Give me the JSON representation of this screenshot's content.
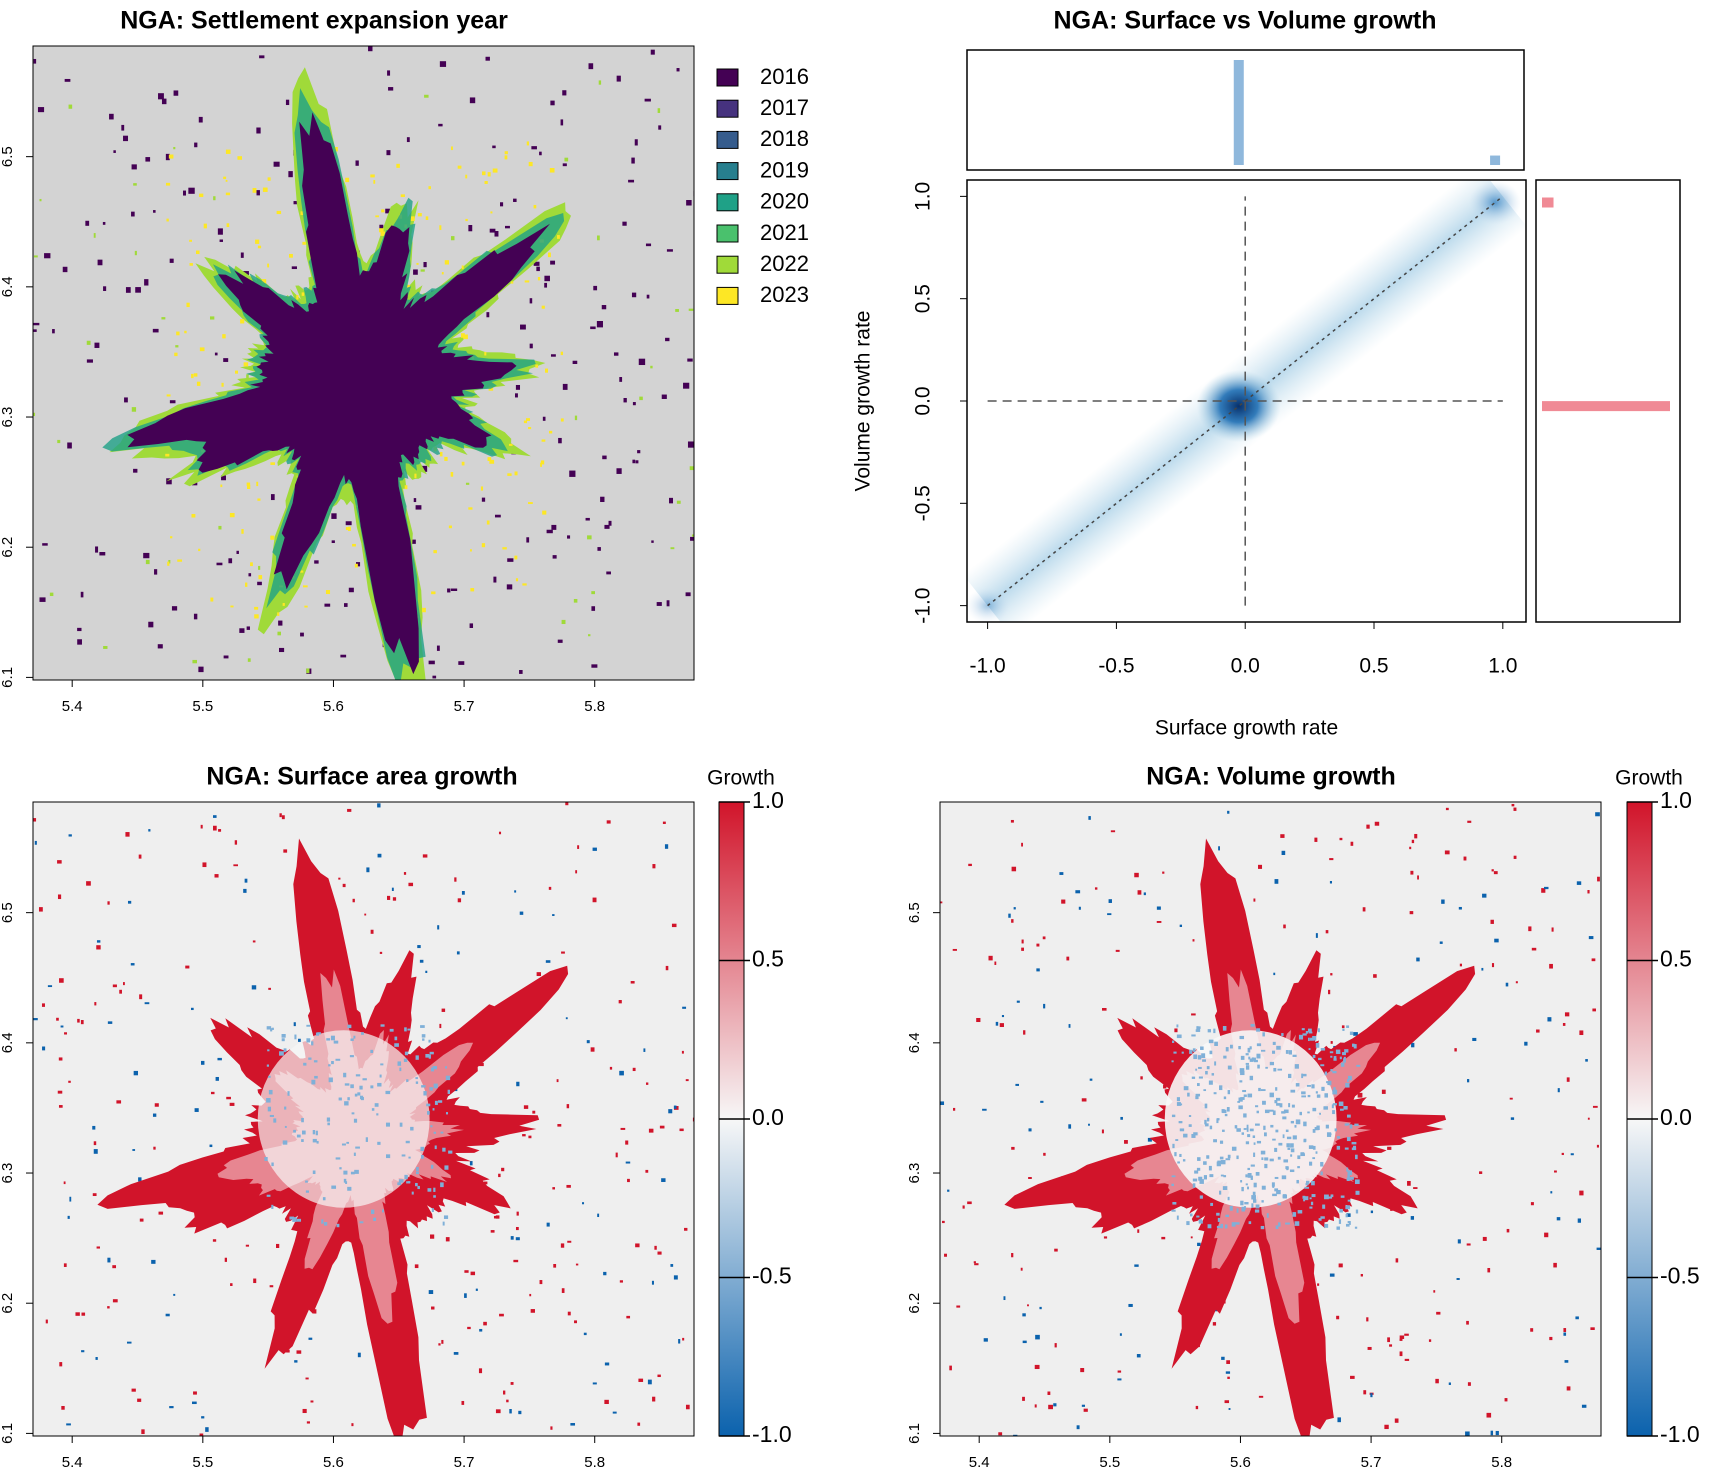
{
  "chart_data": [
    {
      "type": "raster-map",
      "title": "NGA: Settlement expansion year",
      "background": "#d3d3d3",
      "legend": {
        "categories": [
          "2016",
          "2017",
          "2018",
          "2019",
          "2020",
          "2021",
          "2022",
          "2023"
        ],
        "colors": [
          "#440154",
          "#46327e",
          "#365c8d",
          "#277f8e",
          "#1fa187",
          "#4ac16d",
          "#a0da39",
          "#fde725"
        ]
      },
      "xlim": [
        5.37,
        5.876
      ],
      "ylim": [
        6.098,
        6.585
      ],
      "xticks": [
        5.4,
        5.5,
        5.6,
        5.7,
        5.8
      ],
      "yticks": [
        6.1,
        6.2,
        6.3,
        6.4,
        6.5
      ]
    },
    {
      "type": "density",
      "title": "NGA: Surface vs Volume growth",
      "xlabel": "Surface growth rate",
      "ylabel": "Volume growth rate",
      "xlim": [
        -1.08,
        1.09
      ],
      "ylim": [
        -1.08,
        1.08
      ],
      "xticks": [
        {
          "value": -1,
          "label": "-1.0"
        },
        -0.5,
        {
          "value": 0,
          "label": "0.0"
        },
        0.5,
        {
          "value": 1,
          "label": "1.0"
        }
      ],
      "yticks": [
        {
          "value": -1,
          "label": "-1.0"
        },
        -0.5,
        {
          "value": 0,
          "label": "0.0"
        },
        0.5,
        {
          "value": 1,
          "label": "1.0"
        }
      ],
      "color": "#1f6fb4",
      "reference_lines": {
        "h": 0,
        "v": 0
      },
      "x_hist": {
        "x": [
          -0.025,
          0.97
        ],
        "values": [
          100,
          9
        ],
        "color": "#8fb8dc"
      },
      "y_hist": {
        "y": [
          0.97,
          -0.025
        ],
        "values": [
          9,
          100
        ],
        "color": "#f08a95"
      }
    },
    {
      "type": "growth-map",
      "title": "NGA: Surface area growth",
      "background": "#efefef",
      "colorbar": {
        "label": "Growth",
        "lim": [
          -1,
          1
        ],
        "ticks": [
          {
            "value": -1,
            "label": "-1.0"
          },
          -0.5,
          {
            "value": 0,
            "label": "0.0"
          },
          0.5,
          {
            "value": 1,
            "label": "1.0"
          }
        ],
        "colors": [
          "#0b62ad",
          "#f7f7f7",
          "#d1142a"
        ]
      },
      "xlim": [
        5.37,
        5.876
      ],
      "ylim": [
        6.098,
        6.585
      ],
      "xticks": [
        5.4,
        5.5,
        5.6,
        5.7,
        5.8
      ],
      "yticks": [
        6.1,
        6.2,
        6.3,
        6.4,
        6.5
      ]
    },
    {
      "type": "growth-map",
      "title": "NGA: Volume growth",
      "background": "#efefef",
      "colorbar": {
        "label": "Growth",
        "lim": [
          -1,
          1
        ],
        "ticks": [
          {
            "value": -1,
            "label": "-1.0"
          },
          -0.5,
          {
            "value": 0,
            "label": "0.0"
          },
          0.5,
          {
            "value": 1,
            "label": "1.0"
          }
        ],
        "colors": [
          "#0b62ad",
          "#f7f7f7",
          "#d1142a"
        ]
      },
      "xlim": [
        5.37,
        5.876
      ],
      "ylim": [
        6.098,
        6.585
      ],
      "xticks": [
        5.4,
        5.5,
        5.6,
        5.7,
        5.8
      ],
      "yticks": [
        6.1,
        6.2,
        6.3,
        6.4,
        6.5
      ]
    }
  ]
}
